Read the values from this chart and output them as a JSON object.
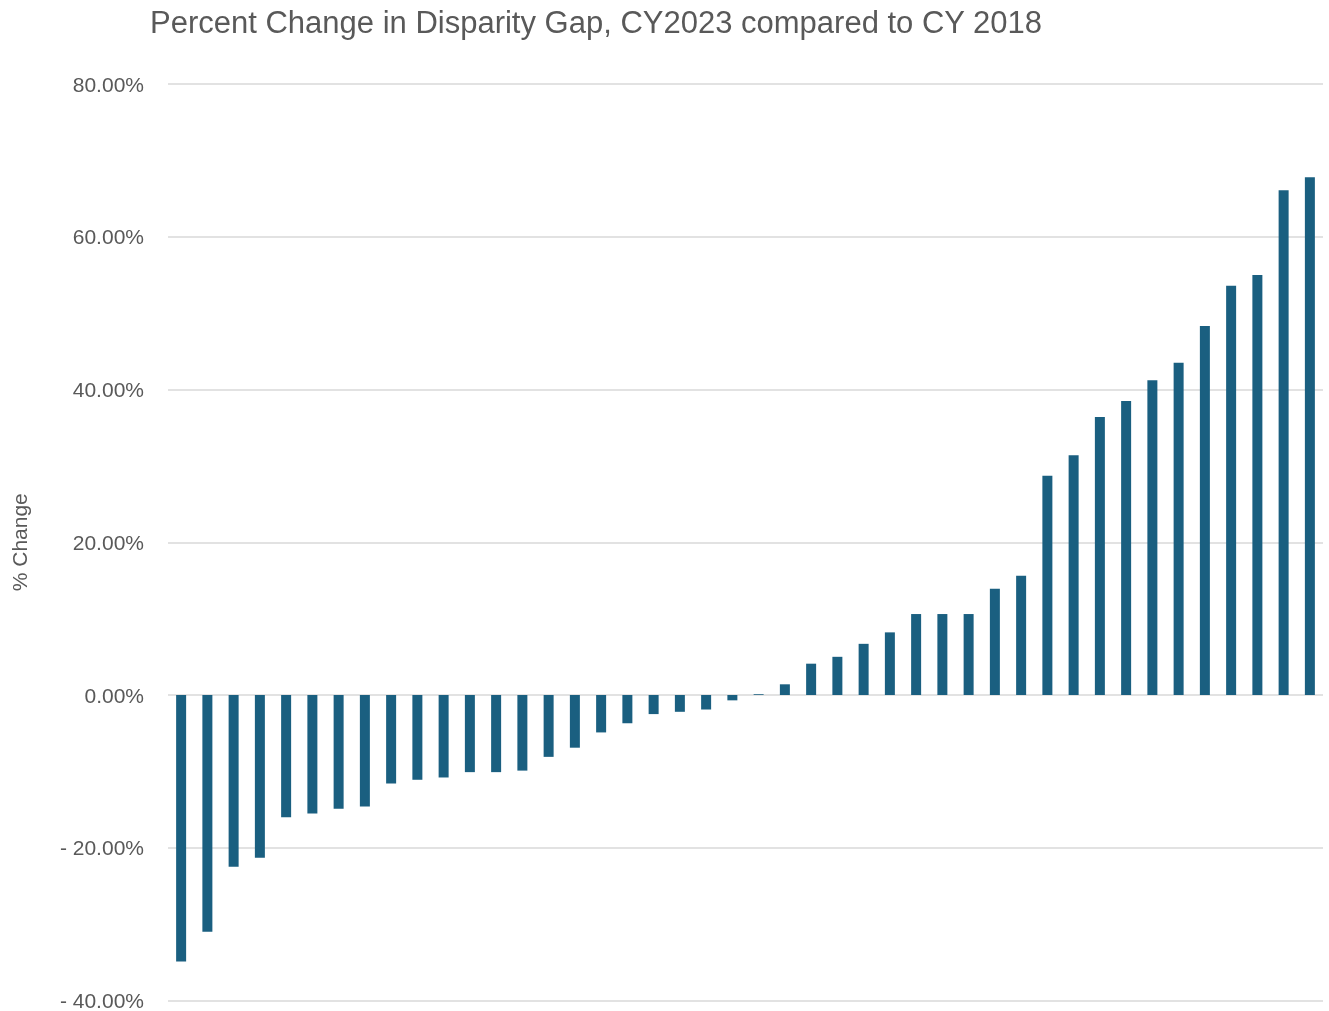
{
  "chart_data": {
    "type": "bar",
    "title": "Percent Change in Disparity Gap, CY2023 compared to CY 2018",
    "ylabel": "% Change",
    "categories": [
      null,
      null,
      null,
      null,
      null,
      null,
      null,
      null,
      null,
      null,
      null,
      null,
      null,
      null,
      null,
      null,
      null,
      null,
      null,
      null,
      null,
      null,
      null,
      null,
      null,
      null,
      null,
      null,
      null,
      null,
      null,
      null,
      null,
      null,
      null,
      null,
      null,
      null,
      null,
      null,
      null,
      null,
      null,
      null
    ],
    "values": [
      -34.9,
      -31.0,
      -22.5,
      -21.3,
      -16.0,
      -15.5,
      -14.9,
      -14.6,
      -11.6,
      -11.1,
      -10.8,
      -10.1,
      -10.1,
      -9.9,
      -8.1,
      -6.9,
      -4.9,
      -3.7,
      -2.5,
      -2.2,
      -1.9,
      -0.7,
      0.1,
      1.4,
      4.1,
      5.0,
      6.7,
      8.2,
      10.6,
      10.6,
      10.6,
      13.9,
      15.6,
      28.7,
      31.4,
      36.4,
      38.5,
      41.2,
      43.5,
      48.3,
      53.6,
      55.0,
      66.1,
      67.8
    ],
    "color": "#1a5f80",
    "ylim": [
      -40,
      80
    ],
    "yticks": [
      {
        "value": -40,
        "label": "- 40.00%"
      },
      {
        "value": -20,
        "label": "- 20.00%"
      },
      {
        "value": 0,
        "label": "0.00%"
      },
      {
        "value": 20,
        "label": "20.00%"
      },
      {
        "value": 40,
        "label": "40.00%"
      },
      {
        "value": 60,
        "label": "60.00%"
      },
      {
        "value": 80,
        "label": "80.00%"
      }
    ],
    "grid": "y",
    "tick_labels": "y"
  }
}
